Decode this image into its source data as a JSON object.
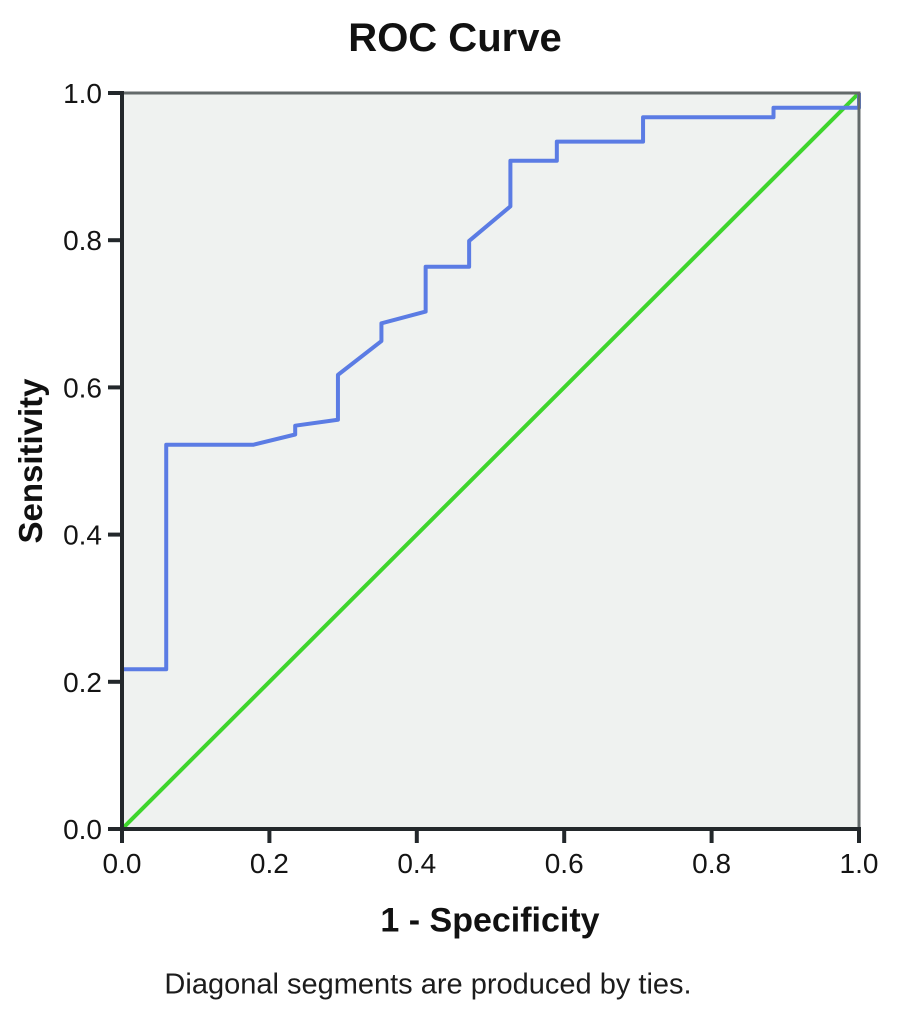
{
  "figure": {
    "title": "ROC Curve",
    "x_axis_label": "1 - Specificity",
    "y_axis_label": "Sensitivity",
    "caption": "Diagonal segments are produced by ties."
  },
  "chart_data": {
    "type": "line",
    "title": "ROC Curve",
    "xlabel": "1 - Specificity",
    "ylabel": "Sensitivity",
    "xlim": [
      0,
      1
    ],
    "ylim": [
      0,
      1
    ],
    "grid": false,
    "legend": "none",
    "plot_background": "#eff2f0",
    "border_color": "#636a6a",
    "axis_color": "#23282b",
    "x_tick_labels": [
      "0.0",
      "0.2",
      "0.4",
      "0.6",
      "0.8",
      "1.0"
    ],
    "x_tick_values": [
      0,
      0.2,
      0.4,
      0.6,
      0.8,
      1.0
    ],
    "y_tick_labels": [
      "0.0",
      "0.2",
      "0.4",
      "0.6",
      "0.8",
      "1.0"
    ],
    "y_tick_values": [
      0,
      0.2,
      0.4,
      0.6,
      0.8,
      1.0
    ],
    "footnote": "Diagonal segments are produced by ties.",
    "series": [
      {
        "name": "ROC curve",
        "color": "#5b7ce4",
        "stroke_width": 4,
        "points": [
          [
            0.0,
            0.0
          ],
          [
            0.0,
            0.217
          ],
          [
            0.06,
            0.217
          ],
          [
            0.06,
            0.522
          ],
          [
            0.178,
            0.522
          ],
          [
            0.235,
            0.536
          ],
          [
            0.235,
            0.548
          ],
          [
            0.293,
            0.556
          ],
          [
            0.293,
            0.617
          ],
          [
            0.352,
            0.663
          ],
          [
            0.352,
            0.687
          ],
          [
            0.412,
            0.703
          ],
          [
            0.412,
            0.764
          ],
          [
            0.471,
            0.764
          ],
          [
            0.471,
            0.799
          ],
          [
            0.527,
            0.846
          ],
          [
            0.527,
            0.908
          ],
          [
            0.59,
            0.908
          ],
          [
            0.59,
            0.934
          ],
          [
            0.707,
            0.934
          ],
          [
            0.707,
            0.967
          ],
          [
            0.884,
            0.967
          ],
          [
            0.884,
            0.98
          ],
          [
            1.0,
            0.98
          ],
          [
            1.0,
            1.0
          ]
        ]
      },
      {
        "name": "Reference line",
        "color": "#3ed52c",
        "stroke_width": 4,
        "points": [
          [
            0.0,
            0.0
          ],
          [
            1.0,
            1.0
          ]
        ]
      }
    ]
  }
}
